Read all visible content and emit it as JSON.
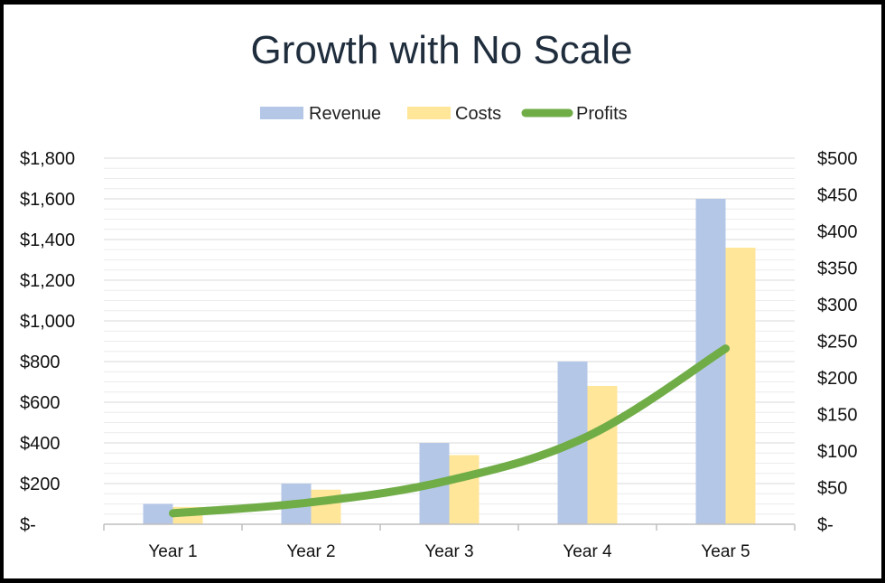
{
  "chart_data": {
    "type": "bar",
    "title": "Growth with No Scale",
    "categories": [
      "Year 1",
      "Year 2",
      "Year 3",
      "Year 4",
      "Year 5"
    ],
    "series": [
      {
        "name": "Revenue",
        "type": "bar",
        "axis": "left",
        "color": "#b4c7e7",
        "values": [
          100,
          200,
          400,
          800,
          1600
        ]
      },
      {
        "name": "Costs",
        "type": "bar",
        "axis": "left",
        "color": "#ffe699",
        "values": [
          85,
          170,
          340,
          680,
          1360
        ]
      },
      {
        "name": "Profits",
        "type": "line",
        "axis": "right",
        "color": "#70ad47",
        "values": [
          15,
          30,
          60,
          120,
          240
        ]
      }
    ],
    "y_left": {
      "ylim": [
        0,
        1800
      ],
      "ticks": [
        0,
        200,
        400,
        600,
        800,
        1000,
        1200,
        1400,
        1600,
        1800
      ],
      "tick_labels": [
        "$-",
        "$200",
        "$400",
        "$600",
        "$800",
        "$1,000",
        "$1,200",
        "$1,400",
        "$1,600",
        "$1,800"
      ]
    },
    "y_right": {
      "ylim": [
        0,
        500
      ],
      "ticks": [
        0,
        50,
        100,
        150,
        200,
        250,
        300,
        350,
        400,
        450,
        500
      ],
      "tick_labels": [
        "$-",
        "$50",
        "$100",
        "$150",
        "$200",
        "$250",
        "$300",
        "$350",
        "$400",
        "$450",
        "$500"
      ]
    },
    "legend_position": "top-center",
    "grid": true,
    "xlabel": "",
    "ylabel": ""
  }
}
